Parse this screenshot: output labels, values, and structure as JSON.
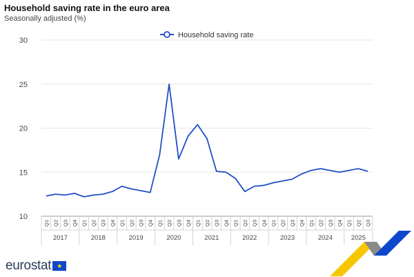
{
  "header": {
    "title": "Household saving rate in the euro area",
    "subtitle": "Seasonally adjusted (%)"
  },
  "brand": {
    "logo_text": "eurostat",
    "flag_star": "★"
  },
  "colors": {
    "line": "#1f4fc7",
    "grid": "#e6e6e6",
    "axis": "#999999",
    "flag": "#0e47cb",
    "ribbon_yellow": "#f6c700",
    "ribbon_blue": "#0e47cb",
    "ribbon_grey": "#8a8a8a"
  },
  "chart_data": {
    "type": "line",
    "title": "Household saving rate in the euro area",
    "subtitle": "Seasonally adjusted (%)",
    "xlabel": "",
    "ylabel": "",
    "ylim": [
      10,
      30
    ],
    "yticks": [
      "10",
      "15",
      "20",
      "25",
      "30"
    ],
    "grid": true,
    "legend_position": "top-center",
    "quarter_labels": [
      "Q1",
      "Q2",
      "Q3",
      "Q4"
    ],
    "years": [
      "2017",
      "2018",
      "2019",
      "2020",
      "2021",
      "2022",
      "2023",
      "2024",
      "2025"
    ],
    "x": [
      "2017-Q1",
      "2017-Q2",
      "2017-Q3",
      "2017-Q4",
      "2018-Q1",
      "2018-Q2",
      "2018-Q3",
      "2018-Q4",
      "2019-Q1",
      "2019-Q2",
      "2019-Q3",
      "2019-Q4",
      "2020-Q1",
      "2020-Q2",
      "2020-Q3",
      "2020-Q4",
      "2021-Q1",
      "2021-Q2",
      "2021-Q3",
      "2021-Q4",
      "2022-Q1",
      "2022-Q2",
      "2022-Q3",
      "2022-Q4",
      "2023-Q1",
      "2023-Q2",
      "2023-Q3",
      "2023-Q4",
      "2024-Q1",
      "2024-Q2",
      "2024-Q3",
      "2024-Q4",
      "2025-Q1",
      "2025-Q2",
      "2025-Q3"
    ],
    "series": [
      {
        "name": "Household saving rate",
        "values": [
          12.3,
          12.5,
          12.4,
          12.6,
          12.2,
          12.4,
          12.5,
          12.8,
          13.4,
          13.1,
          12.9,
          12.7,
          17.0,
          25.0,
          16.5,
          19.1,
          20.4,
          18.8,
          15.1,
          15.0,
          14.3,
          12.8,
          13.4,
          13.5,
          13.8,
          14.0,
          14.2,
          14.8,
          15.2,
          15.4,
          15.2,
          15.0,
          15.2,
          15.4,
          15.1
        ]
      }
    ]
  }
}
